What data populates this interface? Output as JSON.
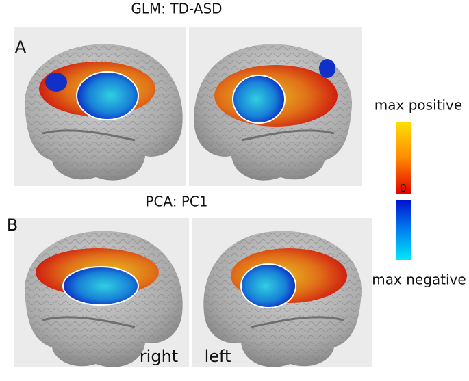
{
  "panels": [
    {
      "label": "A",
      "title": "GLM: TD-ASD"
    },
    {
      "label": "B",
      "title": "PCA: PC1",
      "hemispheres": [
        "right",
        "left"
      ]
    }
  ],
  "colorbar": {
    "top_label": "max positive",
    "zero_label": "0",
    "bottom_label": "max negative"
  }
}
